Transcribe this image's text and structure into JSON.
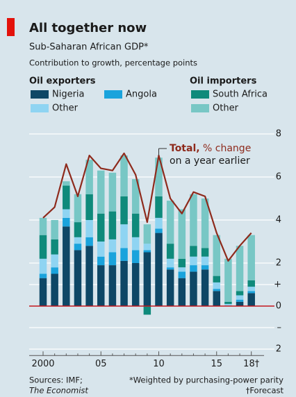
{
  "chart_data": {
    "type": "bar",
    "stacked": true,
    "title": "All together now",
    "subtitle": "Sub-Saharan African GDP*",
    "axis_label": "Contribution to growth, percentage points",
    "legend_groups": [
      "Oil exporters",
      "Oil importers"
    ],
    "categories": [
      "2000",
      null,
      null,
      null,
      null,
      "05",
      null,
      null,
      null,
      null,
      "10",
      null,
      null,
      null,
      null,
      "15",
      null,
      null,
      "18†"
    ],
    "series": [
      {
        "name": "Nigeria",
        "color": "#0e4766",
        "values": [
          1.3,
          1.5,
          3.7,
          2.6,
          2.8,
          1.9,
          1.9,
          2.1,
          2.0,
          2.5,
          3.4,
          1.7,
          1.3,
          1.6,
          1.7,
          0.7,
          0,
          0.2,
          0.6
        ]
      },
      {
        "name": "Angola",
        "color": "#1aa3dc",
        "values": [
          0.2,
          0.3,
          0.4,
          0.3,
          0.4,
          0.4,
          0.6,
          0.6,
          0.6,
          0.1,
          0.2,
          0.1,
          0.3,
          0.3,
          0.2,
          0.1,
          0,
          0.1,
          0.1
        ]
      },
      {
        "name": "Other",
        "color": "#8fd4f2",
        "values": [
          0.7,
          0.6,
          0.4,
          0.3,
          0.8,
          0.7,
          0.6,
          1.1,
          0.6,
          0.3,
          0.5,
          0.4,
          0.2,
          0.4,
          0.4,
          0.3,
          0.1,
          0.2,
          0.2
        ]
      },
      {
        "name": "South Africa",
        "color": "#0f8a7b",
        "values": [
          1.1,
          0.7,
          1.1,
          0.7,
          1.2,
          1.3,
          1.3,
          1.3,
          1.1,
          -0.4,
          1.0,
          0.7,
          0.4,
          0.5,
          0.4,
          0.3,
          0.1,
          0.2,
          0.3
        ]
      },
      {
        "name": "Other",
        "color": "#78c7c5",
        "values": [
          0.8,
          0.9,
          0.2,
          1.3,
          1.6,
          2.0,
          1.8,
          1.9,
          1.6,
          0.9,
          1.8,
          2.0,
          2.3,
          2.4,
          2.3,
          1.9,
          2.0,
          2.1,
          2.1
        ]
      }
    ],
    "line": {
      "color": "#8e2a1c",
      "values": [
        4.1,
        4.6,
        6.6,
        5.1,
        7.0,
        6.4,
        6.3,
        7.1,
        6.1,
        3.9,
        7.0,
        5.0,
        4.3,
        5.3,
        5.1,
        3.4,
        2.1,
        2.8,
        3.4
      ]
    },
    "annotation": {
      "bold": "Total,",
      "text": " % change",
      "text2": "on a year earlier"
    },
    "ylim": [
      -2.3,
      8.5
    ],
    "yticks": [
      8,
      6,
      4,
      2,
      {
        "value": 1,
        "label": "+"
      },
      0,
      {
        "value": -1,
        "label": "–"
      },
      {
        "value": -2,
        "label": "2"
      }
    ],
    "grid": true,
    "sources": [
      "Sources: IMF;",
      "The Economist"
    ],
    "footnotes": [
      "*Weighted by purchasing-power parity",
      "†Forecast"
    ]
  }
}
